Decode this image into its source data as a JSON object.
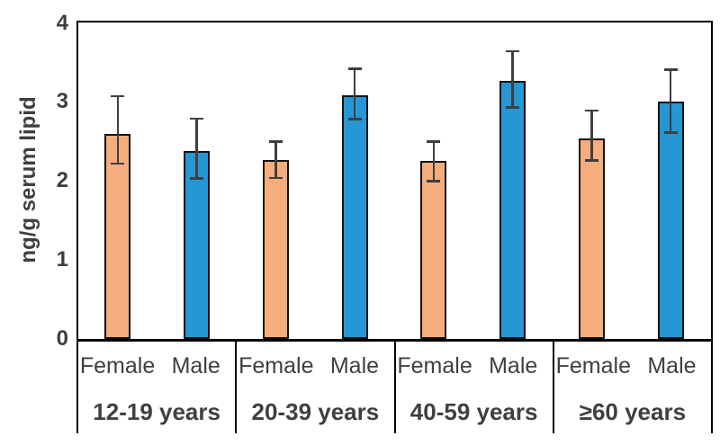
{
  "chart_data": {
    "type": "bar",
    "ylabel": "ng/g serum lipid",
    "ylim": [
      0,
      4
    ],
    "yticks": [
      0,
      1,
      2,
      3,
      4
    ],
    "grid": false,
    "legend": "none",
    "categories": [
      "12-19 years",
      "20-39 years",
      "40-59 years",
      "≥60 years"
    ],
    "series": [
      {
        "name": "Female",
        "color": "#F6AD7D",
        "values": [
          2.6,
          2.26,
          2.25,
          2.54
        ],
        "err_low": [
          2.22,
          2.04,
          2.0,
          2.26
        ],
        "err_high": [
          3.07,
          2.5,
          2.5,
          2.89
        ]
      },
      {
        "name": "Male",
        "color": "#2697D5",
        "values": [
          2.38,
          3.08,
          3.27,
          3.0
        ],
        "err_low": [
          2.03,
          2.78,
          2.93,
          2.61
        ],
        "err_high": [
          2.79,
          3.42,
          3.64,
          3.41
        ]
      }
    ],
    "colors": {
      "bar_border": "#111111",
      "error_bar": "#3f3f3f",
      "axis_line": "#000000",
      "label_text": "#3f3f3f"
    }
  }
}
